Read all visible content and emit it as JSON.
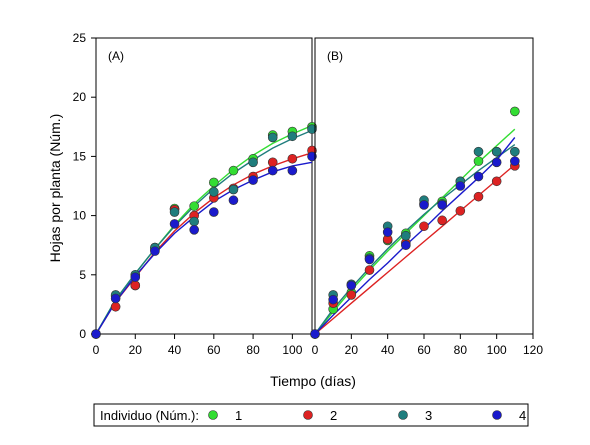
{
  "chart_data": {
    "type": "scatter",
    "title": "",
    "xlabel": "Tiempo (días)",
    "ylabel": "Hojas por planta (Núm.)",
    "ylim": [
      0,
      25
    ],
    "yticks": [
      0,
      5,
      10,
      15,
      20,
      25
    ],
    "grid": false,
    "legend": {
      "title": "Individuo (Núm.):",
      "placement": "bottom",
      "entries": [
        {
          "label": "1",
          "color": "#33dd33"
        },
        {
          "label": "2",
          "color": "#dd2222"
        },
        {
          "label": "3",
          "color": "#1f7d7d"
        },
        {
          "label": "4",
          "color": "#1a1acc"
        }
      ]
    },
    "panels": [
      {
        "label": "(A)",
        "xlim": [
          0,
          110
        ],
        "xticks": [
          0,
          20,
          40,
          60,
          80,
          100
        ],
        "series": [
          {
            "name": "1",
            "color": "#33dd33",
            "x": [
              0,
              10,
              20,
              30,
              40,
              50,
              60,
              70,
              80,
              90,
              100,
              110
            ],
            "y": [
              0,
              3.2,
              4.1,
              7.3,
              10.6,
              10.8,
              12.8,
              13.8,
              14.8,
              16.8,
              17.1,
              17.5
            ],
            "fit": [
              [
                0,
                0
              ],
              [
                10,
                2.9
              ],
              [
                20,
                5.1
              ],
              [
                30,
                7.2
              ],
              [
                40,
                9.2
              ],
              [
                50,
                11.0
              ],
              [
                60,
                12.5
              ],
              [
                70,
                13.9
              ],
              [
                80,
                15.1
              ],
              [
                90,
                16.1
              ],
              [
                100,
                16.9
              ],
              [
                110,
                17.6
              ]
            ]
          },
          {
            "name": "2",
            "color": "#dd2222",
            "x": [
              0,
              10,
              20,
              30,
              40,
              50,
              60,
              70,
              80,
              90,
              100,
              110
            ],
            "y": [
              0,
              2.3,
              4.1,
              7.1,
              10.5,
              10.0,
              11.5,
              12.3,
              13.3,
              14.5,
              14.8,
              15.5
            ],
            "fit": [
              [
                0,
                0
              ],
              [
                10,
                2.7
              ],
              [
                20,
                4.8
              ],
              [
                30,
                6.9
              ],
              [
                40,
                8.7
              ],
              [
                50,
                10.2
              ],
              [
                60,
                11.5
              ],
              [
                70,
                12.6
              ],
              [
                80,
                13.5
              ],
              [
                90,
                14.2
              ],
              [
                100,
                14.8
              ],
              [
                110,
                15.3
              ]
            ]
          },
          {
            "name": "3",
            "color": "#1f7d7d",
            "x": [
              0,
              10,
              20,
              30,
              40,
              50,
              60,
              70,
              80,
              90,
              100,
              110
            ],
            "y": [
              0,
              3.3,
              5.0,
              7.3,
              10.3,
              9.5,
              12.0,
              12.2,
              14.5,
              16.6,
              16.7,
              17.3
            ],
            "fit": [
              [
                0,
                0
              ],
              [
                10,
                2.9
              ],
              [
                20,
                5.1
              ],
              [
                30,
                7.2
              ],
              [
                40,
                9.1
              ],
              [
                50,
                10.8
              ],
              [
                60,
                12.3
              ],
              [
                70,
                13.6
              ],
              [
                80,
                14.7
              ],
              [
                90,
                15.7
              ],
              [
                100,
                16.5
              ],
              [
                110,
                17.2
              ]
            ]
          },
          {
            "name": "4",
            "color": "#1a1acc",
            "x": [
              0,
              10,
              20,
              30,
              40,
              50,
              60,
              70,
              80,
              90,
              100,
              110
            ],
            "y": [
              0,
              3.0,
              4.8,
              7.0,
              9.3,
              8.8,
              10.3,
              11.3,
              13.0,
              13.8,
              13.8,
              15.0
            ],
            "fit": [
              [
                0,
                0
              ],
              [
                10,
                2.7
              ],
              [
                20,
                4.9
              ],
              [
                30,
                6.8
              ],
              [
                40,
                8.5
              ],
              [
                50,
                9.9
              ],
              [
                60,
                11.2
              ],
              [
                70,
                12.2
              ],
              [
                80,
                13.0
              ],
              [
                90,
                13.7
              ],
              [
                100,
                14.2
              ],
              [
                110,
                14.5
              ]
            ]
          }
        ]
      },
      {
        "label": "(B)",
        "xlim": [
          0,
          120
        ],
        "xticks": [
          0,
          20,
          40,
          60,
          80,
          100,
          120
        ],
        "series": [
          {
            "name": "1",
            "color": "#33dd33",
            "x": [
              0,
              10,
              20,
              30,
              40,
              50,
              60,
              70,
              80,
              90,
              100,
              110
            ],
            "y": [
              0,
              2.1,
              3.5,
              6.6,
              7.9,
              8.5,
              11.0,
              11.2,
              12.9,
              14.6,
              15.4,
              18.8
            ],
            "fit": [
              [
                0,
                0
              ],
              [
                10,
                1.9
              ],
              [
                20,
                3.7
              ],
              [
                30,
                5.4
              ],
              [
                40,
                7.0
              ],
              [
                50,
                8.5
              ],
              [
                60,
                10.0
              ],
              [
                70,
                11.5
              ],
              [
                80,
                13.0
              ],
              [
                90,
                14.5
              ],
              [
                100,
                15.9
              ],
              [
                110,
                17.3
              ]
            ]
          },
          {
            "name": "2",
            "color": "#dd2222",
            "x": [
              0,
              10,
              20,
              30,
              40,
              50,
              60,
              70,
              80,
              90,
              100,
              110
            ],
            "y": [
              0,
              2.6,
              3.3,
              5.4,
              8.0,
              7.7,
              9.1,
              9.6,
              10.4,
              11.6,
              12.9,
              14.2
            ],
            "fit": [
              [
                0,
                0
              ],
              [
                10,
                1.3
              ],
              [
                20,
                2.6
              ],
              [
                30,
                3.9
              ],
              [
                40,
                5.2
              ],
              [
                50,
                6.5
              ],
              [
                60,
                7.8
              ],
              [
                70,
                9.1
              ],
              [
                80,
                10.4
              ],
              [
                90,
                11.7
              ],
              [
                100,
                13.0
              ],
              [
                110,
                14.3
              ]
            ]
          },
          {
            "name": "3",
            "color": "#1f7d7d",
            "x": [
              0,
              10,
              20,
              30,
              40,
              50,
              60,
              70,
              80,
              90,
              100,
              110
            ],
            "y": [
              0,
              3.3,
              4.2,
              6.4,
              9.1,
              8.3,
              11.3,
              11.0,
              12.9,
              15.4,
              15.4,
              15.4
            ],
            "fit": [
              [
                0,
                0
              ],
              [
                10,
                2.1
              ],
              [
                20,
                3.9
              ],
              [
                30,
                5.6
              ],
              [
                40,
                7.2
              ],
              [
                50,
                8.7
              ],
              [
                60,
                10.1
              ],
              [
                70,
                11.4
              ],
              [
                80,
                12.6
              ],
              [
                90,
                13.8
              ],
              [
                100,
                14.9
              ],
              [
                110,
                16.0
              ]
            ]
          },
          {
            "name": "4",
            "color": "#1a1acc",
            "x": [
              0,
              10,
              20,
              30,
              40,
              50,
              60,
              70,
              80,
              90,
              100,
              110
            ],
            "y": [
              0,
              2.9,
              4.1,
              6.3,
              8.6,
              7.5,
              10.9,
              10.9,
              12.5,
              13.3,
              14.5,
              14.6
            ],
            "fit": [
              [
                0,
                0
              ],
              [
                10,
                1.6
              ],
              [
                20,
                3.1
              ],
              [
                30,
                4.6
              ],
              [
                40,
                6.0
              ],
              [
                50,
                7.5
              ],
              [
                60,
                8.9
              ],
              [
                70,
                10.4
              ],
              [
                80,
                11.8
              ],
              [
                90,
                13.2
              ],
              [
                100,
                14.7
              ],
              [
                110,
                16.6
              ]
            ]
          }
        ]
      }
    ]
  }
}
